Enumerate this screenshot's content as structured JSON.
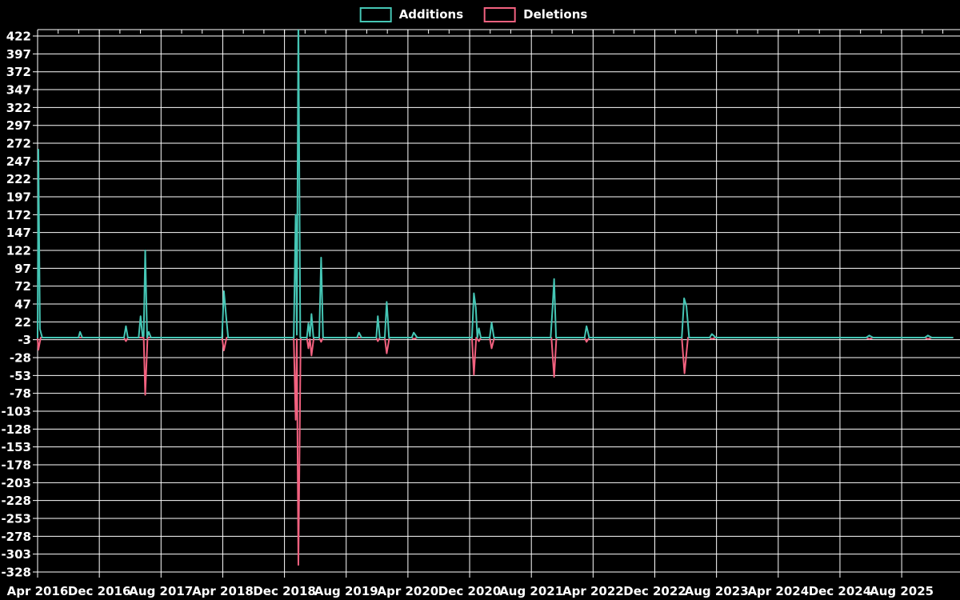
{
  "legend": {
    "items": [
      {
        "label": "Additions",
        "color": "#45c6b5"
      },
      {
        "label": "Deletions",
        "color": "#f2617f"
      }
    ]
  },
  "colors": {
    "background": "#000000",
    "grid": "#ffffff",
    "tick_text": "#ffffff",
    "additions": "#45c6b5",
    "deletions": "#f2617f"
  },
  "chart_data": {
    "type": "line",
    "title": "",
    "xlabel": "",
    "ylabel": "",
    "grid": true,
    "legend_position": "top-center",
    "x_unit": "months since Apr 2016 (weekly spiky series)",
    "x_axis": {
      "start_label": "Apr 2016",
      "label_step_months": 8,
      "tick_labels": [
        "Apr 2016",
        "Dec 2016",
        "Aug 2017",
        "Apr 2018",
        "Dec 2018",
        "Aug 2019",
        "Apr 2020",
        "Dec 2020",
        "Aug 2021",
        "Apr 2022",
        "Dec 2022",
        "Aug 2023",
        "Apr 2024",
        "Dec 2024",
        "Aug 2025"
      ]
    },
    "y_axis": {
      "min": -328,
      "max": 422,
      "grid_step": 25,
      "tick_labels": [
        422,
        397,
        372,
        347,
        322,
        297,
        272,
        247,
        222,
        197,
        172,
        147,
        122,
        97,
        72,
        47,
        22,
        -3,
        -28,
        -53,
        -78,
        -103,
        -128,
        -153,
        -178,
        -203,
        -228,
        -253,
        -278,
        -303,
        -328
      ]
    },
    "series": [
      {
        "name": "Additions",
        "color": "#45c6b5",
        "points": [
          [
            0,
            0
          ],
          [
            0.1,
            263
          ],
          [
            0.3,
            12
          ],
          [
            0.6,
            0
          ],
          [
            5.3,
            0
          ],
          [
            5.5,
            8
          ],
          [
            5.8,
            0
          ],
          [
            11.2,
            0
          ],
          [
            11.45,
            16
          ],
          [
            11.7,
            0
          ],
          [
            13.1,
            0
          ],
          [
            13.35,
            30
          ],
          [
            13.6,
            2
          ],
          [
            13.75,
            2
          ],
          [
            13.95,
            122
          ],
          [
            14.2,
            0
          ],
          [
            14.4,
            8
          ],
          [
            14.7,
            0
          ],
          [
            23.9,
            0
          ],
          [
            24.15,
            65
          ],
          [
            24.45,
            28
          ],
          [
            24.7,
            0
          ],
          [
            33.2,
            0
          ],
          [
            33.45,
            172
          ],
          [
            33.6,
            4
          ],
          [
            33.8,
            450
          ],
          [
            34.05,
            0
          ],
          [
            34.9,
            0
          ],
          [
            35.1,
            20
          ],
          [
            35.3,
            2
          ],
          [
            35.5,
            33
          ],
          [
            35.75,
            0
          ],
          [
            36.5,
            0
          ],
          [
            36.75,
            112
          ],
          [
            37.0,
            0
          ],
          [
            41.4,
            0
          ],
          [
            41.65,
            7
          ],
          [
            42.0,
            0
          ],
          [
            43.9,
            0
          ],
          [
            44.1,
            30
          ],
          [
            44.35,
            0
          ],
          [
            45.0,
            0
          ],
          [
            45.25,
            50
          ],
          [
            45.55,
            0
          ],
          [
            48.5,
            0
          ],
          [
            48.75,
            7
          ],
          [
            49.2,
            0
          ],
          [
            56.3,
            0
          ],
          [
            56.55,
            62
          ],
          [
            56.8,
            42
          ],
          [
            57.0,
            0
          ],
          [
            57.2,
            13
          ],
          [
            57.45,
            0
          ],
          [
            58.6,
            0
          ],
          [
            58.85,
            21
          ],
          [
            59.15,
            0
          ],
          [
            66.5,
            0
          ],
          [
            66.75,
            42
          ],
          [
            66.95,
            82
          ],
          [
            67.2,
            0
          ],
          [
            70.9,
            0
          ],
          [
            71.15,
            16
          ],
          [
            71.5,
            0
          ],
          [
            83.5,
            0
          ],
          [
            83.8,
            55
          ],
          [
            84.1,
            44
          ],
          [
            84.45,
            0
          ],
          [
            87.1,
            0
          ],
          [
            87.4,
            5
          ],
          [
            87.9,
            0
          ],
          [
            107.4,
            0
          ],
          [
            107.8,
            3
          ],
          [
            108.3,
            0
          ],
          [
            115.0,
            0
          ],
          [
            115.4,
            3
          ],
          [
            115.9,
            0
          ],
          [
            118.6,
            0
          ]
        ]
      },
      {
        "name": "Deletions",
        "color": "#f2617f",
        "points": [
          [
            0,
            0
          ],
          [
            0.1,
            -17
          ],
          [
            0.4,
            0
          ],
          [
            11.2,
            0
          ],
          [
            11.45,
            -5
          ],
          [
            11.7,
            0
          ],
          [
            13.75,
            0
          ],
          [
            13.95,
            -80
          ],
          [
            14.25,
            0
          ],
          [
            23.9,
            0
          ],
          [
            24.15,
            -18
          ],
          [
            24.5,
            0
          ],
          [
            33.2,
            0
          ],
          [
            33.45,
            -115
          ],
          [
            33.6,
            -2
          ],
          [
            33.8,
            -318
          ],
          [
            34.1,
            0
          ],
          [
            34.9,
            0
          ],
          [
            35.1,
            -15
          ],
          [
            35.3,
            -2
          ],
          [
            35.5,
            -25
          ],
          [
            35.8,
            0
          ],
          [
            36.5,
            0
          ],
          [
            36.75,
            -6
          ],
          [
            37.0,
            0
          ],
          [
            43.9,
            0
          ],
          [
            44.1,
            -5
          ],
          [
            44.35,
            0
          ],
          [
            45.0,
            0
          ],
          [
            45.25,
            -22
          ],
          [
            45.6,
            0
          ],
          [
            48.5,
            0
          ],
          [
            48.75,
            -2
          ],
          [
            49.2,
            0
          ],
          [
            56.3,
            0
          ],
          [
            56.55,
            -52
          ],
          [
            56.85,
            0
          ],
          [
            57.2,
            -5
          ],
          [
            57.45,
            0
          ],
          [
            58.6,
            0
          ],
          [
            58.85,
            -15
          ],
          [
            59.2,
            0
          ],
          [
            66.6,
            0
          ],
          [
            66.95,
            -55
          ],
          [
            67.25,
            0
          ],
          [
            70.9,
            0
          ],
          [
            71.15,
            -6
          ],
          [
            71.5,
            0
          ],
          [
            83.5,
            0
          ],
          [
            83.85,
            -50
          ],
          [
            84.3,
            0
          ],
          [
            87.1,
            0
          ],
          [
            87.4,
            -2
          ],
          [
            87.9,
            0
          ],
          [
            107.4,
            0
          ],
          [
            107.8,
            -2
          ],
          [
            108.3,
            0
          ],
          [
            115.0,
            0
          ],
          [
            115.4,
            -2
          ],
          [
            115.9,
            0
          ],
          [
            118.6,
            0
          ]
        ]
      }
    ]
  }
}
